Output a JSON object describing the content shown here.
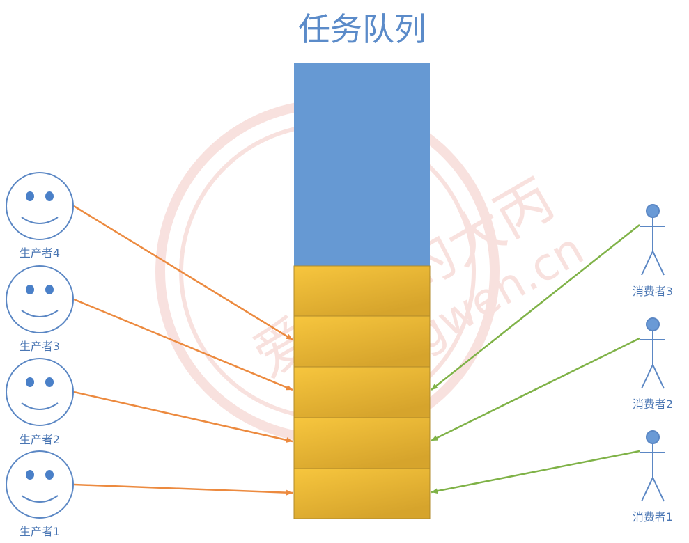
{
  "title": "任务队列",
  "watermark": {
    "main": "爱编程的大丙",
    "sub": "subingwen.cn"
  },
  "colors": {
    "title": "#5b8bc9",
    "queue_empty": "#6699d3",
    "queue_filled": "#e4b233",
    "queue_filled_light": "#f7c63e",
    "queue_border": "#b08a2a",
    "producer_arrow": "#ec8a3f",
    "consumer_arrow": "#7fb247",
    "person": "#5b87c4",
    "label": "#4a76b3",
    "watermark": "#f3c9c4"
  },
  "queue": {
    "empty_fraction_label": "",
    "filled_slots": 5
  },
  "producers": [
    {
      "label": "生产者4",
      "icon": "smiley-icon",
      "target_slot": 1
    },
    {
      "label": "生产者3",
      "icon": "smiley-icon",
      "target_slot": 2
    },
    {
      "label": "生产者2",
      "icon": "smiley-icon",
      "target_slot": 3
    },
    {
      "label": "生产者1",
      "icon": "smiley-icon",
      "target_slot": 4
    }
  ],
  "consumers": [
    {
      "label": "消费者3",
      "icon": "stick-person-icon",
      "target_slot": 2
    },
    {
      "label": "消费者2",
      "icon": "stick-person-icon",
      "target_slot": 3
    },
    {
      "label": "消费者1",
      "icon": "stick-person-icon",
      "target_slot": 4
    }
  ]
}
